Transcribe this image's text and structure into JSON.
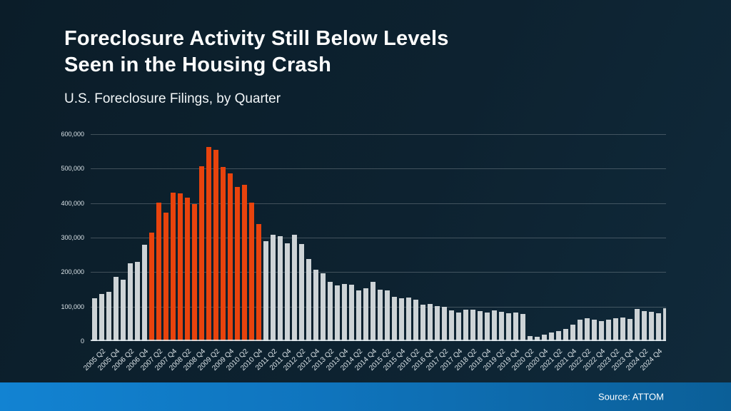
{
  "slide": {
    "title_line1": "Foreclosure Activity Still Below Levels",
    "title_line2": "Seen in the Housing Crash",
    "subtitle": "U.S. Foreclosure Filings, by Quarter",
    "source": "Source: ATTOM"
  },
  "colors": {
    "background": "#0d2230",
    "bar_default": "#cdd3d6",
    "bar_highlight": "#e8430d",
    "gridline": "rgba(255,255,255,0.22)",
    "footer_gradient_left": "#1283d2",
    "footer_gradient_right": "#0b5f98",
    "text": "#ffffff"
  },
  "chart_data": {
    "type": "bar",
    "title": "U.S. Foreclosure Filings, by Quarter",
    "xlabel": "",
    "ylabel": "",
    "ylim": [
      0,
      600000
    ],
    "grid": true,
    "legend_position": "none",
    "y_ticks": [
      0,
      100000,
      200000,
      300000,
      400000,
      500000,
      600000
    ],
    "y_tick_labels": [
      "0",
      "100,000",
      "200,000",
      "300,000",
      "400,000",
      "500,000",
      "600,000"
    ],
    "x_label_every": 2,
    "x_label_offset": 1,
    "highlight_meaning": "housing-crash quarters shown in orange",
    "points": [
      {
        "quarter": "2005 Q1",
        "value": 125000,
        "highlight": false
      },
      {
        "quarter": "2005 Q2",
        "value": 137000,
        "highlight": false
      },
      {
        "quarter": "2005 Q3",
        "value": 143000,
        "highlight": false
      },
      {
        "quarter": "2005 Q4",
        "value": 186000,
        "highlight": false
      },
      {
        "quarter": "2006 Q1",
        "value": 178000,
        "highlight": false
      },
      {
        "quarter": "2006 Q2",
        "value": 225000,
        "highlight": false
      },
      {
        "quarter": "2006 Q3",
        "value": 230000,
        "highlight": false
      },
      {
        "quarter": "2006 Q4",
        "value": 280000,
        "highlight": false
      },
      {
        "quarter": "2007 Q1",
        "value": 315000,
        "highlight": true
      },
      {
        "quarter": "2007 Q2",
        "value": 402000,
        "highlight": true
      },
      {
        "quarter": "2007 Q3",
        "value": 373000,
        "highlight": true
      },
      {
        "quarter": "2007 Q4",
        "value": 430000,
        "highlight": true
      },
      {
        "quarter": "2008 Q1",
        "value": 428000,
        "highlight": true
      },
      {
        "quarter": "2008 Q2",
        "value": 416000,
        "highlight": true
      },
      {
        "quarter": "2008 Q3",
        "value": 397000,
        "highlight": true
      },
      {
        "quarter": "2008 Q4",
        "value": 507000,
        "highlight": true
      },
      {
        "quarter": "2009 Q1",
        "value": 563000,
        "highlight": true
      },
      {
        "quarter": "2009 Q2",
        "value": 554000,
        "highlight": true
      },
      {
        "quarter": "2009 Q3",
        "value": 505000,
        "highlight": true
      },
      {
        "quarter": "2009 Q4",
        "value": 486000,
        "highlight": true
      },
      {
        "quarter": "2010 Q1",
        "value": 447000,
        "highlight": true
      },
      {
        "quarter": "2010 Q2",
        "value": 453000,
        "highlight": true
      },
      {
        "quarter": "2010 Q3",
        "value": 401000,
        "highlight": true
      },
      {
        "quarter": "2010 Q4",
        "value": 340000,
        "highlight": true
      },
      {
        "quarter": "2011 Q1",
        "value": 290000,
        "highlight": false
      },
      {
        "quarter": "2011 Q2",
        "value": 309000,
        "highlight": false
      },
      {
        "quarter": "2011 Q3",
        "value": 304000,
        "highlight": false
      },
      {
        "quarter": "2011 Q4",
        "value": 284000,
        "highlight": false
      },
      {
        "quarter": "2012 Q1",
        "value": 309000,
        "highlight": false
      },
      {
        "quarter": "2012 Q2",
        "value": 281000,
        "highlight": false
      },
      {
        "quarter": "2012 Q3",
        "value": 237000,
        "highlight": false
      },
      {
        "quarter": "2012 Q4",
        "value": 206000,
        "highlight": false
      },
      {
        "quarter": "2013 Q1",
        "value": 196000,
        "highlight": false
      },
      {
        "quarter": "2013 Q2",
        "value": 171000,
        "highlight": false
      },
      {
        "quarter": "2013 Q3",
        "value": 161000,
        "highlight": false
      },
      {
        "quarter": "2013 Q4",
        "value": 165000,
        "highlight": false
      },
      {
        "quarter": "2014 Q1",
        "value": 163000,
        "highlight": false
      },
      {
        "quarter": "2014 Q2",
        "value": 147000,
        "highlight": false
      },
      {
        "quarter": "2014 Q3",
        "value": 154000,
        "highlight": false
      },
      {
        "quarter": "2014 Q4",
        "value": 171000,
        "highlight": false
      },
      {
        "quarter": "2015 Q1",
        "value": 149000,
        "highlight": false
      },
      {
        "quarter": "2015 Q2",
        "value": 147000,
        "highlight": false
      },
      {
        "quarter": "2015 Q3",
        "value": 129000,
        "highlight": false
      },
      {
        "quarter": "2015 Q4",
        "value": 125000,
        "highlight": false
      },
      {
        "quarter": "2016 Q1",
        "value": 127000,
        "highlight": false
      },
      {
        "quarter": "2016 Q2",
        "value": 120000,
        "highlight": false
      },
      {
        "quarter": "2016 Q3",
        "value": 105000,
        "highlight": false
      },
      {
        "quarter": "2016 Q4",
        "value": 107000,
        "highlight": false
      },
      {
        "quarter": "2017 Q1",
        "value": 102000,
        "highlight": false
      },
      {
        "quarter": "2017 Q2",
        "value": 99000,
        "highlight": false
      },
      {
        "quarter": "2017 Q3",
        "value": 89000,
        "highlight": false
      },
      {
        "quarter": "2017 Q4",
        "value": 83000,
        "highlight": false
      },
      {
        "quarter": "2018 Q1",
        "value": 92000,
        "highlight": false
      },
      {
        "quarter": "2018 Q2",
        "value": 92000,
        "highlight": false
      },
      {
        "quarter": "2018 Q3",
        "value": 87000,
        "highlight": false
      },
      {
        "quarter": "2018 Q4",
        "value": 82000,
        "highlight": false
      },
      {
        "quarter": "2019 Q1",
        "value": 88000,
        "highlight": false
      },
      {
        "quarter": "2019 Q2",
        "value": 85000,
        "highlight": false
      },
      {
        "quarter": "2019 Q3",
        "value": 80000,
        "highlight": false
      },
      {
        "quarter": "2019 Q4",
        "value": 82000,
        "highlight": false
      },
      {
        "quarter": "2020 Q1",
        "value": 78000,
        "highlight": false
      },
      {
        "quarter": "2020 Q2",
        "value": 15000,
        "highlight": false
      },
      {
        "quarter": "2020 Q3",
        "value": 13000,
        "highlight": false
      },
      {
        "quarter": "2020 Q4",
        "value": 18000,
        "highlight": false
      },
      {
        "quarter": "2021 Q1",
        "value": 24000,
        "highlight": false
      },
      {
        "quarter": "2021 Q2",
        "value": 30000,
        "highlight": false
      },
      {
        "quarter": "2021 Q3",
        "value": 36000,
        "highlight": false
      },
      {
        "quarter": "2021 Q4",
        "value": 48000,
        "highlight": false
      },
      {
        "quarter": "2022 Q1",
        "value": 62000,
        "highlight": false
      },
      {
        "quarter": "2022 Q2",
        "value": 66000,
        "highlight": false
      },
      {
        "quarter": "2022 Q3",
        "value": 62000,
        "highlight": false
      },
      {
        "quarter": "2022 Q4",
        "value": 57000,
        "highlight": false
      },
      {
        "quarter": "2023 Q1",
        "value": 62000,
        "highlight": false
      },
      {
        "quarter": "2023 Q2",
        "value": 67000,
        "highlight": false
      },
      {
        "quarter": "2023 Q3",
        "value": 69000,
        "highlight": false
      },
      {
        "quarter": "2023 Q4",
        "value": 64000,
        "highlight": false
      },
      {
        "quarter": "2024 Q1",
        "value": 93000,
        "highlight": false
      },
      {
        "quarter": "2024 Q2",
        "value": 87000,
        "highlight": false
      },
      {
        "quarter": "2024 Q3",
        "value": 84000,
        "highlight": false
      },
      {
        "quarter": "2024 Q4",
        "value": 80000,
        "highlight": false
      },
      {
        "quarter": "2025 Q1",
        "value": 95000,
        "highlight": false,
        "clipped": true
      }
    ]
  }
}
